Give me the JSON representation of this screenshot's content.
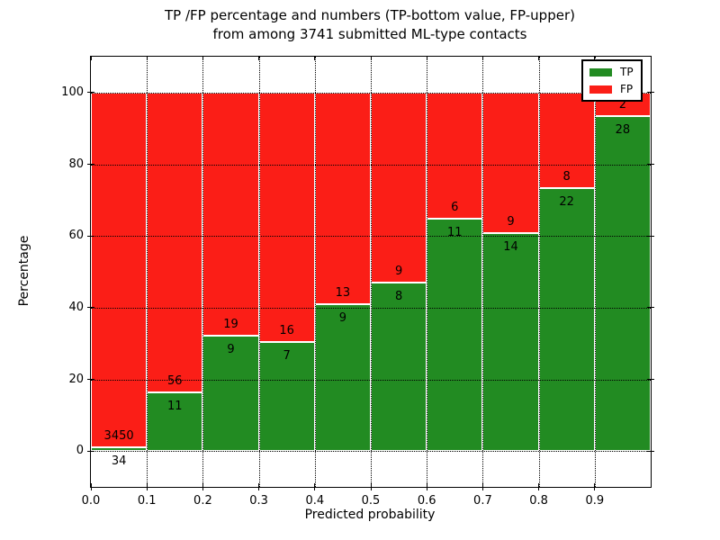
{
  "title": {
    "line1": "TP /FP percentage and numbers (TP-bottom value, FP-upper)",
    "line2": "from among 3741 submitted ML-type contacts"
  },
  "chart_data": {
    "type": "bar",
    "stacked": true,
    "normalized": "each bin scaled to 100%, segment heights are count/(TP+FP)*100",
    "title": "TP /FP percentage and numbers (TP-bottom value, FP-upper) from among 3741 submitted ML-type contacts",
    "xlabel": "Predicted probability",
    "ylabel": "Percentage",
    "xlim": [
      0.0,
      1.0
    ],
    "ylim": [
      -10,
      110
    ],
    "bin_width": 0.1,
    "xticks": [
      "0.0",
      "0.1",
      "0.2",
      "0.3",
      "0.4",
      "0.5",
      "0.6",
      "0.7",
      "0.8",
      "0.9"
    ],
    "yticks": [
      0,
      20,
      40,
      60,
      80,
      100
    ],
    "grid": "dotted, both axes, drawn over bars",
    "series": [
      {
        "name": "TP",
        "color": "#228b22",
        "counts": [
          34,
          11,
          9,
          7,
          9,
          8,
          11,
          14,
          22,
          28
        ]
      },
      {
        "name": "FP",
        "color": "#fb1e17",
        "counts": [
          3450,
          56,
          19,
          16,
          13,
          9,
          6,
          9,
          8,
          2
        ]
      }
    ],
    "tp_percent_per_bin": [
      0.98,
      16.42,
      32.14,
      30.43,
      40.91,
      47.06,
      64.71,
      60.87,
      73.33,
      93.33
    ],
    "legend": {
      "position": "upper right",
      "entries": [
        {
          "label": "TP",
          "color": "#228b22"
        },
        {
          "label": "FP",
          "color": "#fb1e17"
        }
      ]
    }
  }
}
